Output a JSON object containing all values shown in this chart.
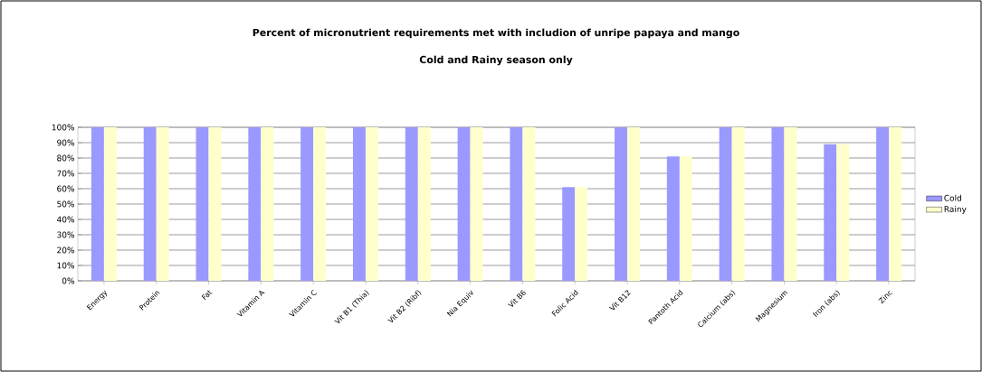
{
  "chart_data": {
    "type": "bar",
    "title": "Percent of micronutrient requirements met with includion of unripe papaya and mango",
    "subtitle": "Cold and Rainy season only",
    "categories": [
      "Energy",
      "Protein",
      "Fat",
      "Vitamin A",
      "Vitamin C",
      "Vit B1 (Thia)",
      "Vit B2 (Ribf)",
      "Nia Equiv",
      "Vit B6",
      "Folic Acid",
      "Vit B12",
      "Pantoth Acid",
      "Calcium (abs)",
      "Magnesium",
      "Iron (abs)",
      "Zinc"
    ],
    "series": [
      {
        "name": "Cold",
        "color": "#9999ff",
        "values": [
          100,
          100,
          100,
          100,
          100,
          100,
          100,
          100,
          100,
          61,
          100,
          81,
          100,
          100,
          89,
          100
        ]
      },
      {
        "name": "Rainy",
        "color": "#ffffcc",
        "values": [
          100,
          100,
          100,
          100,
          100,
          100,
          100,
          100,
          100,
          61,
          100,
          81,
          100,
          100,
          89,
          100
        ]
      }
    ],
    "ylim": [
      0,
      100
    ],
    "yticks": [
      {
        "value": 0,
        "label": "0%"
      },
      {
        "value": 10,
        "label": "10%"
      },
      {
        "value": 20,
        "label": "20%"
      },
      {
        "value": 30,
        "label": "30%"
      },
      {
        "value": 40,
        "label": "40%"
      },
      {
        "value": 50,
        "label": "50%"
      },
      {
        "value": 60,
        "label": "60%"
      },
      {
        "value": 70,
        "label": "70%"
      },
      {
        "value": 80,
        "label": "80%"
      },
      {
        "value": 90,
        "label": "90%"
      },
      {
        "value": 100,
        "label": "100%"
      }
    ],
    "grid": "y",
    "legend": "right"
  }
}
